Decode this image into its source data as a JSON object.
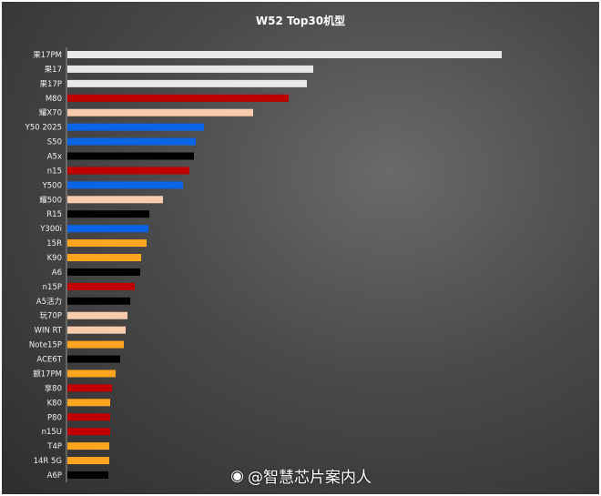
{
  "chart_data": {
    "type": "bar",
    "orientation": "horizontal",
    "title": "W52 Top30机型",
    "categories": [
      "果17PM",
      "果17",
      "果17P",
      "M80",
      "耀X70",
      "Y50 2025",
      "S50",
      "A5x",
      "n15",
      "Y500",
      "耀500",
      "R15",
      "Y300i",
      "15R",
      "K90",
      "A6",
      "n15P",
      "A5活力",
      "玩70P",
      "WIN RT",
      "Note15P",
      "ACE6T",
      "额17PM",
      "享80",
      "K80",
      "P80",
      "n15U",
      "T4P",
      "14R 5G",
      "A6P"
    ],
    "values": [
      477,
      270,
      263,
      243,
      204,
      150,
      141,
      139,
      134,
      127,
      105,
      90,
      89,
      87,
      81,
      80,
      74,
      69,
      66,
      64,
      62,
      58,
      53,
      49,
      47,
      47,
      47,
      46,
      46,
      45
    ],
    "bar_colors": [
      "#e8e8e8",
      "#e8e8e8",
      "#e8e8e8",
      "#c00000",
      "#f8cbad",
      "#0a64e6",
      "#0a64e6",
      "#000000",
      "#c00000",
      "#0a64e6",
      "#f8cbad",
      "#000000",
      "#0a64e6",
      "#ffa51e",
      "#ffa51e",
      "#000000",
      "#c00000",
      "#000000",
      "#f8cbad",
      "#f8cbad",
      "#ffa51e",
      "#000000",
      "#ffa51e",
      "#c00000",
      "#ffa51e",
      "#c00000",
      "#c00000",
      "#ffa51e",
      "#ffa51e",
      "#000000"
    ],
    "xlabel": "",
    "ylabel": "",
    "grid": false
  },
  "watermark": "@智慧芯片案内人"
}
